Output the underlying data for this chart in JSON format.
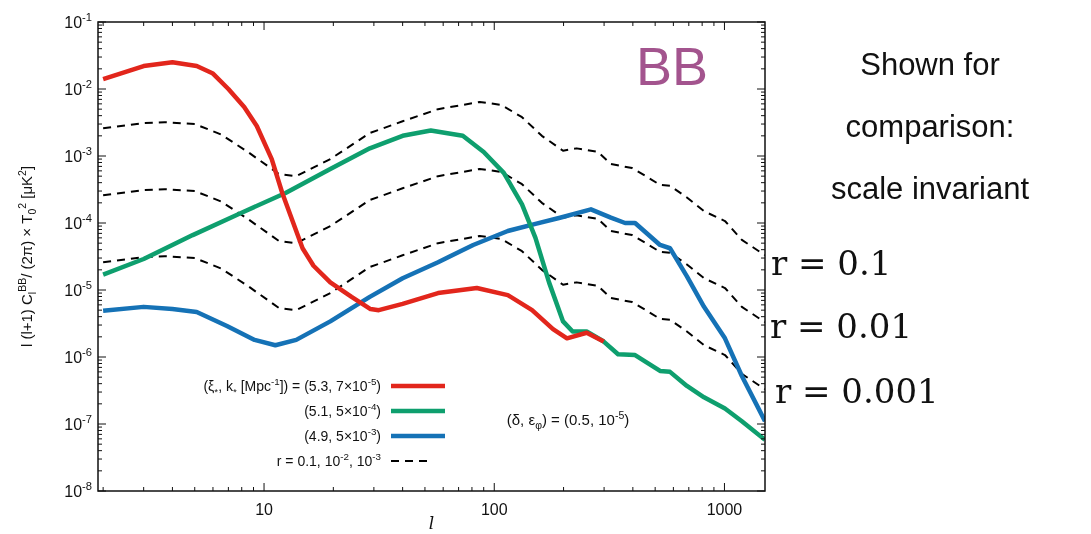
{
  "chart_data": {
    "type": "line",
    "log": "xy",
    "xlabel": "l",
    "ylabel": "l (l+1) C$_{l}$$^{BB}$/ (2π) × T$_{0}$$^{2}$ [μK$^{2}$]",
    "legend": "bottom left",
    "xlim": [
      1.9,
      1500
    ],
    "ylim": [
      1e-08,
      0.1
    ],
    "xticks": [
      {
        "value": 2,
        "label": null
      },
      {
        "value": 3,
        "label": null
      },
      {
        "value": 4,
        "label": null
      },
      {
        "value": 5,
        "label": null
      },
      {
        "value": 6,
        "label": null
      },
      {
        "value": 7,
        "label": null
      },
      {
        "value": 8,
        "label": null
      },
      {
        "value": 9,
        "label": null
      },
      10,
      {
        "value": 20,
        "label": null
      },
      {
        "value": 30,
        "label": null
      },
      {
        "value": 40,
        "label": null
      },
      {
        "value": 50,
        "label": null
      },
      {
        "value": 60,
        "label": null
      },
      {
        "value": 70,
        "label": null
      },
      {
        "value": 80,
        "label": null
      },
      {
        "value": 90,
        "label": null
      },
      100,
      {
        "value": 200,
        "label": null
      },
      {
        "value": 300,
        "label": null
      },
      {
        "value": 400,
        "label": null
      },
      {
        "value": 500,
        "label": null
      },
      {
        "value": 600,
        "label": null
      },
      {
        "value": 700,
        "label": null
      },
      {
        "value": 800,
        "label": null
      },
      {
        "value": 900,
        "label": null
      },
      1000
    ],
    "yticks": [
      {
        "value": 1e-08,
        "label": "10$^{-8}$"
      },
      {
        "value": 2e-08,
        "label": null
      },
      {
        "value": 3e-08,
        "label": null
      },
      {
        "value": 4e-08,
        "label": null
      },
      {
        "value": 5e-08,
        "label": null
      },
      {
        "value": 6e-08,
        "label": null
      },
      {
        "value": 7e-08,
        "label": null
      },
      {
        "value": 8e-08,
        "label": null
      },
      {
        "value": 9e-08,
        "label": null
      },
      {
        "value": 1e-07,
        "label": "10$^{-7}$"
      },
      {
        "value": 2e-07,
        "label": null
      },
      {
        "value": 3e-07,
        "label": null
      },
      {
        "value": 4e-07,
        "label": null
      },
      {
        "value": 5e-07,
        "label": null
      },
      {
        "value": 6e-07,
        "label": null
      },
      {
        "value": 7e-07,
        "label": null
      },
      {
        "value": 8e-07,
        "label": null
      },
      {
        "value": 9e-07,
        "label": null
      },
      {
        "value": 1e-06,
        "label": "10$^{-6}$"
      },
      {
        "value": 2e-06,
        "label": null
      },
      {
        "value": 3e-06,
        "label": null
      },
      {
        "value": 4e-06,
        "label": null
      },
      {
        "value": 5e-06,
        "label": null
      },
      {
        "value": 6e-06,
        "label": null
      },
      {
        "value": 7e-06,
        "label": null
      },
      {
        "value": 8e-06,
        "label": null
      },
      {
        "value": 9e-06,
        "label": null
      },
      {
        "value": 1e-05,
        "label": "10$^{-5}$"
      },
      {
        "value": 2e-05,
        "label": null
      },
      {
        "value": 3e-05,
        "label": null
      },
      {
        "value": 4e-05,
        "label": null
      },
      {
        "value": 5e-05,
        "label": null
      },
      {
        "value": 6e-05,
        "label": null
      },
      {
        "value": 7e-05,
        "label": null
      },
      {
        "value": 8e-05,
        "label": null
      },
      {
        "value": 9e-05,
        "label": null
      },
      {
        "value": 0.0001,
        "label": "10$^{-4}$"
      },
      {
        "value": 0.0002,
        "label": null
      },
      {
        "value": 0.0003,
        "label": null
      },
      {
        "value": 0.0004,
        "label": null
      },
      {
        "value": 0.0005,
        "label": null
      },
      {
        "value": 0.0006,
        "label": null
      },
      {
        "value": 0.0007,
        "label": null
      },
      {
        "value": 0.0008,
        "label": null
      },
      {
        "value": 0.0009,
        "label": null
      },
      {
        "value": 0.001,
        "label": "10$^{-3}$"
      },
      {
        "value": 0.002,
        "label": null
      },
      {
        "value": 0.003,
        "label": null
      },
      {
        "value": 0.004,
        "label": null
      },
      {
        "value": 0.005,
        "label": null
      },
      {
        "value": 0.006,
        "label": null
      },
      {
        "value": 0.007,
        "label": null
      },
      {
        "value": 0.008,
        "label": null
      },
      {
        "value": 0.009,
        "label": null
      },
      {
        "value": 0.01,
        "label": "10$^{-2}$"
      },
      {
        "value": 0.02,
        "label": null
      },
      {
        "value": 0.03,
        "label": null
      },
      {
        "value": 0.04,
        "label": null
      },
      {
        "value": 0.05,
        "label": null
      },
      {
        "value": 0.06,
        "label": null
      },
      {
        "value": 0.07,
        "label": null
      },
      {
        "value": 0.08,
        "label": null
      },
      {
        "value": 0.09,
        "label": null
      },
      {
        "value": 0.1,
        "label": "10$^{-1}$"
      }
    ],
    "series": [
      {
        "name": "(ξ$_{*}$, k$_{*}$ [Mpc$^{-1}$]) = (5.3, 7×10$^{-5}$)",
        "color": "#e2261c",
        "x": [
          2,
          3,
          4,
          5.1,
          6,
          7,
          8.2,
          9.3,
          10.8,
          12,
          13.3,
          14.7,
          16.4,
          19.4,
          24,
          29,
          31.5,
          40,
          57,
          84,
          114.5,
          146,
          180,
          207,
          252,
          299
        ],
        "values": [
          0.014,
          0.022,
          0.025,
          0.022,
          0.017,
          0.01,
          0.0054,
          0.0028,
          0.0009,
          0.00028,
          0.000107,
          4.2e-05,
          2.3e-05,
          1.3e-05,
          7.9e-06,
          5.2e-06,
          5e-06,
          6.2e-06,
          9e-06,
          1.07e-05,
          8.4e-06,
          5e-06,
          2.6e-06,
          1.9e-06,
          2.3e-06,
          1.7e-06
        ]
      },
      {
        "name": "(5.1, 5×10$^{-4}$)",
        "color": "#0e9f6e",
        "x": [
          2,
          3,
          4.9,
          7.9,
          12.4,
          19.4,
          28.8,
          40,
          53,
          73,
          90,
          110,
          132,
          151,
          173,
          199,
          219,
          252,
          299,
          345,
          409,
          525,
          580,
          687,
          815,
          1005,
          1190,
          1500
        ],
        "values": [
          1.7e-05,
          2.9e-05,
          6.6e-05,
          0.00014,
          0.00028,
          0.00064,
          0.0013,
          0.002,
          0.0024,
          0.002,
          0.00115,
          0.00056,
          0.00019,
          6e-05,
          1.3e-05,
          3.4e-06,
          2.4e-06,
          2.4e-06,
          1.7e-06,
          1.1e-06,
          1.07e-06,
          6.2e-07,
          6e-07,
          3.7e-07,
          2.5e-07,
          1.7e-07,
          1.1e-07,
          5.8e-08
        ]
      },
      {
        "name": "(4.9, 5×10$^{-3}$)",
        "color": "#1572b6",
        "x": [
          2,
          3,
          4,
          5.1,
          6.9,
          9.1,
          11.2,
          13.8,
          19.4,
          28.8,
          40,
          57,
          81,
          114.5,
          151,
          193,
          263,
          321,
          370,
          409,
          525,
          580,
          687,
          815,
          1005,
          1190,
          1500
        ],
        "values": [
          4.9e-06,
          5.6e-06,
          5.2e-06,
          4.7e-06,
          2.9e-06,
          1.8e-06,
          1.5e-06,
          1.8e-06,
          3.4e-06,
          7.9e-06,
          1.5e-05,
          2.6e-05,
          4.7e-05,
          7.6e-05,
          9.7e-05,
          0.00012,
          0.00016,
          0.00012,
          0.0001,
          0.0001,
          4.7e-05,
          4.2e-05,
          1.6e-05,
          5.6e-06,
          1.9e-06,
          5.2e-07,
          1.1e-07
        ]
      },
      {
        "name": "r = 0.1, 10$^{-2}$, 10$^{-3}$",
        "color": "#000000",
        "line_style": "dashed",
        "x": [
          2,
          3,
          3.7,
          5,
          6.5,
          8.5,
          11.6,
          13.8,
          19.4,
          28.8,
          40,
          57,
          86.5,
          107,
          132,
          161,
          199,
          228,
          282,
          321,
          397,
          456,
          525,
          580,
          687,
          815,
          1005,
          1190,
          1500
        ],
        "values": [
          0.0026,
          0.0031,
          0.0032,
          0.003,
          0.0021,
          0.00115,
          0.00054,
          0.0005,
          0.0009,
          0.0022,
          0.0033,
          0.005,
          0.0064,
          0.0058,
          0.0038,
          0.002,
          0.0012,
          0.0013,
          0.00115,
          0.00076,
          0.00066,
          0.0005,
          0.00037,
          0.00036,
          0.00024,
          0.00015,
          0.000107,
          5.6e-05,
          3.3e-05
        ]
      },
      {
        "color": "#000000",
        "line_style": "dashed",
        "x": [
          2,
          3,
          3.7,
          5,
          6.5,
          8.5,
          11.6,
          13.8,
          19.4,
          28.8,
          40,
          57,
          86.5,
          107,
          132,
          161,
          199,
          228,
          282,
          321,
          397,
          456,
          525,
          580,
          687,
          815,
          1005,
          1190,
          1500
        ],
        "values": [
          0.00026,
          0.00031,
          0.00032,
          0.0003,
          0.00021,
          0.000115,
          5.4e-05,
          5e-05,
          9e-05,
          0.00022,
          0.00033,
          0.0005,
          0.00064,
          0.00058,
          0.00038,
          0.0002,
          0.00012,
          0.00013,
          0.000115,
          7.6e-05,
          6.6e-05,
          5e-05,
          3.7e-05,
          3.6e-05,
          2.4e-05,
          1.5e-05,
          1.07e-05,
          5.6e-06,
          3.3e-06
        ]
      },
      {
        "color": "#000000",
        "line_style": "dashed",
        "x": [
          2,
          3,
          3.7,
          5,
          6.5,
          8.5,
          11.6,
          13.8,
          19.4,
          28.8,
          40,
          57,
          86.5,
          107,
          132,
          161,
          199,
          228,
          282,
          321,
          397,
          456,
          525,
          580,
          687,
          815,
          1005,
          1190,
          1500
        ],
        "values": [
          2.6e-05,
          3.1e-05,
          3.2e-05,
          3e-05,
          2.1e-05,
          1.15e-05,
          5.4e-06,
          5e-06,
          9e-06,
          2.2e-05,
          3.3e-05,
          5e-05,
          6.4e-05,
          5.8e-05,
          3.8e-05,
          2e-05,
          1.2e-05,
          1.3e-05,
          1.15e-05,
          7.6e-06,
          6.6e-06,
          5e-06,
          3.7e-06,
          3.6e-06,
          2.4e-06,
          1.5e-06,
          1.07e-06,
          5.6e-07,
          3.3e-07
        ]
      }
    ],
    "annotations": [
      "BB",
      "(δ, ε$_{φ}$) = (0.5, 10$^{-5}$)",
      "Shown for comparison: scale invariant",
      "r = 0.1",
      "r = 0.01",
      "r = 0.001"
    ]
  }
}
